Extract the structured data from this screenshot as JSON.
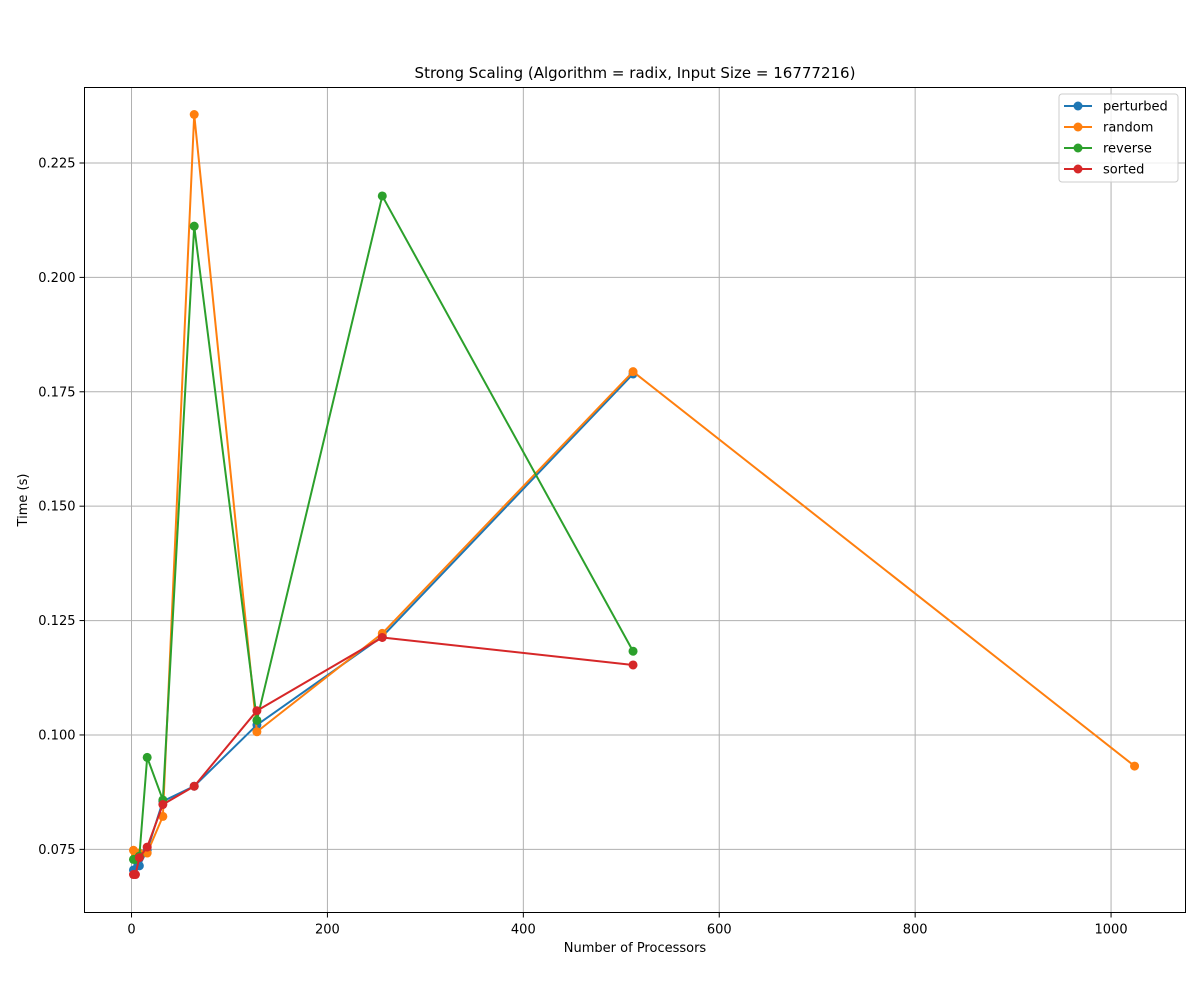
{
  "chart_data": {
    "type": "line",
    "title": "Strong Scaling (Algorithm = radix, Input Size = 16777216)",
    "xlabel": "Number of Processors",
    "ylabel": "Time (s)",
    "xlim": [
      -48,
      1076
    ],
    "ylim": [
      0.0612,
      0.2415
    ],
    "xticks": [
      0,
      200,
      400,
      600,
      800,
      1000
    ],
    "yticks": [
      0.075,
      0.1,
      0.125,
      0.15,
      0.175,
      0.2,
      0.225
    ],
    "ytick_labels": [
      "0.075",
      "0.100",
      "0.125",
      "0.150",
      "0.175",
      "0.200",
      "0.225"
    ],
    "grid": true,
    "legend_position": "top-right",
    "series": [
      {
        "name": "perturbed",
        "color": "#1f77b4",
        "x": [
          2,
          4,
          8,
          16,
          32,
          64,
          128,
          256,
          512
        ],
        "y": [
          0.0705,
          0.0728,
          0.0714,
          0.0748,
          0.0855,
          0.0888,
          0.1022,
          0.1215,
          0.1789
        ]
      },
      {
        "name": "random",
        "color": "#ff7f0e",
        "x": [
          2,
          4,
          8,
          16,
          32,
          64,
          128,
          256,
          512,
          1024
        ],
        "y": [
          0.0748,
          0.0735,
          0.0742,
          0.0742,
          0.0822,
          0.2356,
          0.1007,
          0.1222,
          0.1794,
          0.0932
        ]
      },
      {
        "name": "reverse",
        "color": "#2ca02c",
        "x": [
          2,
          4,
          8,
          16,
          32,
          64,
          128,
          256,
          512
        ],
        "y": [
          0.0728,
          0.0728,
          0.0735,
          0.0951,
          0.0858,
          0.2112,
          0.1032,
          0.2178,
          0.1183
        ]
      },
      {
        "name": "sorted",
        "color": "#d62728",
        "x": [
          2,
          4,
          8,
          16,
          32,
          64,
          128,
          256,
          512
        ],
        "y": [
          0.0695,
          0.0695,
          0.0732,
          0.0755,
          0.0848,
          0.0888,
          0.1053,
          0.1213,
          0.1153
        ]
      }
    ]
  }
}
